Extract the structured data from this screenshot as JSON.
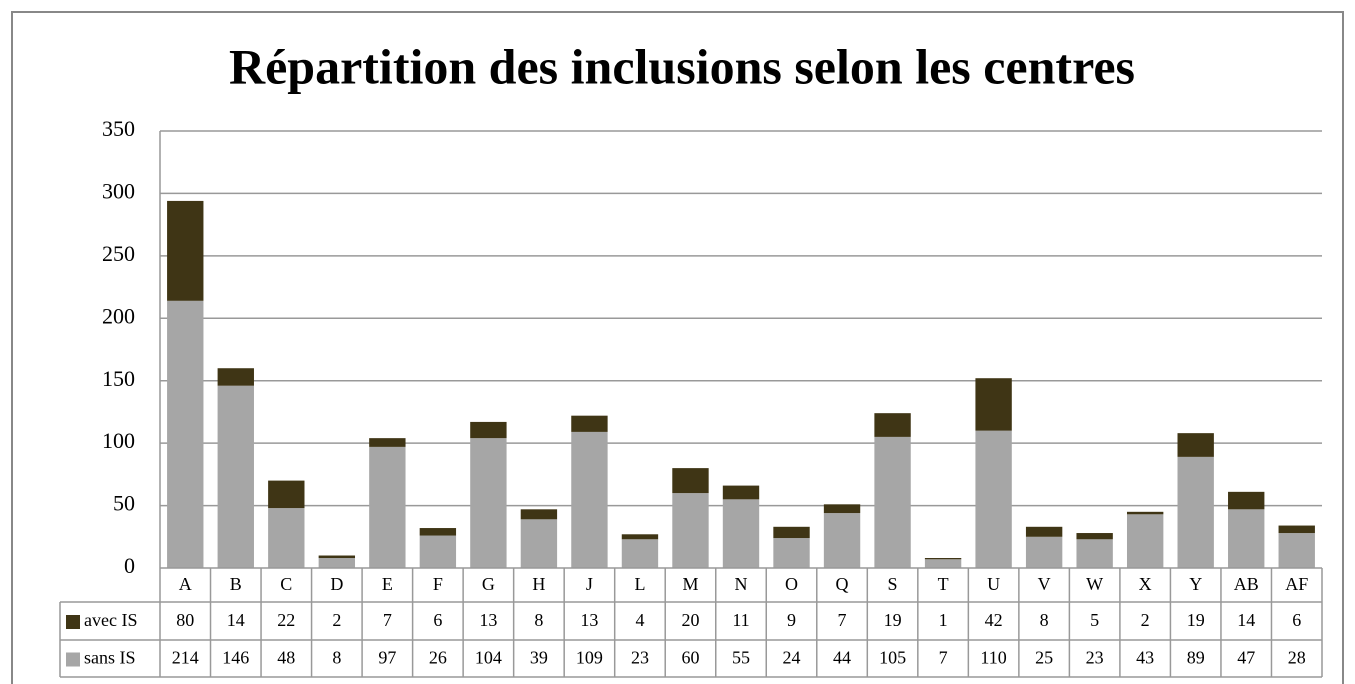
{
  "chart_data": {
    "type": "stacked_bar",
    "title": "Répartition des inclusions selon les centres",
    "categories": [
      "A",
      "B",
      "C",
      "D",
      "E",
      "F",
      "G",
      "H",
      "J",
      "L",
      "M",
      "N",
      "O",
      "Q",
      "S",
      "T",
      "U",
      "V",
      "W",
      "X",
      "Y",
      "AB",
      "AF"
    ],
    "series": [
      {
        "name": "avec IS",
        "color": "#3f3515",
        "values": [
          80,
          14,
          22,
          2,
          7,
          6,
          13,
          8,
          13,
          4,
          20,
          11,
          9,
          7,
          19,
          1,
          42,
          8,
          5,
          2,
          19,
          14,
          6
        ]
      },
      {
        "name": "sans IS",
        "color": "#a6a6a6",
        "values": [
          214,
          146,
          48,
          8,
          97,
          26,
          104,
          39,
          109,
          23,
          60,
          55,
          24,
          44,
          105,
          7,
          110,
          25,
          23,
          43,
          89,
          47,
          28
        ]
      }
    ],
    "stack_order": [
      "sans IS",
      "avec IS"
    ],
    "ylim": [
      0,
      350
    ],
    "yticks": [
      0,
      50,
      100,
      150,
      200,
      250,
      300,
      350
    ],
    "grid": true,
    "data_table": true
  }
}
